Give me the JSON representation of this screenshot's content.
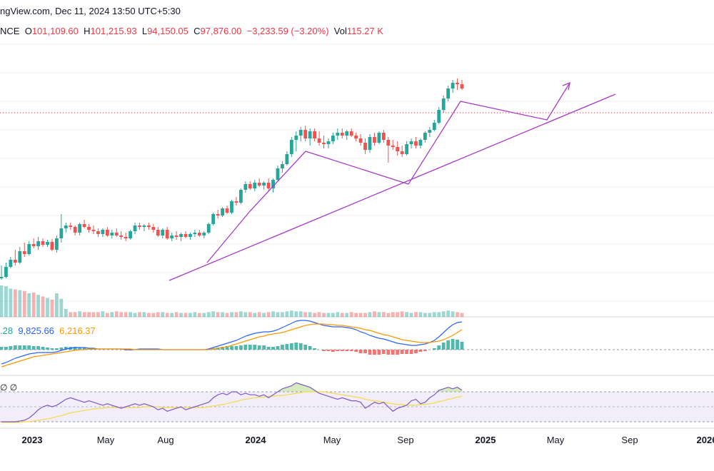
{
  "header": {
    "credit": "ngView.com, Dec 11, 2024 13:50 UTC+5:30",
    "symbol_fragment": "NCE",
    "open_label": "O",
    "open": "101,109.60",
    "high_label": "H",
    "high": "101,215.93",
    "low_label": "L",
    "low": "94,150.05",
    "close_label": "C",
    "close": "97,876.00",
    "change": "−3,233.59 (−3.20%)",
    "vol_label": "Vol",
    "vol": "115.27 K"
  },
  "macd_values": {
    "v1": ".28",
    "v2": "9,825.66",
    "v3": "6,216.37"
  },
  "rsi_symbols": "∅ ∅",
  "colors": {
    "up": "#26a69a",
    "down": "#ef5350",
    "macd": "#2962ff",
    "signal": "#ff9800",
    "rsi": "#7e57c2",
    "rsi_ma": "#f5d94a",
    "drawing": "#a73bc7",
    "price_line": "#f23645"
  },
  "chart_data": {
    "type": "candlestick",
    "time_axis_labels": [
      "2023",
      "May",
      "Aug",
      "2024",
      "May",
      "Sep",
      "2025",
      "May",
      "Sep",
      "2026"
    ],
    "time_axis_bold": [
      "2023",
      "2024",
      "2025",
      "2026"
    ],
    "candles": [
      {
        "o": 40,
        "h": 58,
        "l": 38,
        "c": 42
      },
      {
        "o": 42,
        "h": 62,
        "l": 40,
        "c": 56
      },
      {
        "o": 56,
        "h": 70,
        "l": 54,
        "c": 66
      },
      {
        "o": 66,
        "h": 80,
        "l": 58,
        "c": 62
      },
      {
        "o": 62,
        "h": 84,
        "l": 60,
        "c": 78
      },
      {
        "o": 78,
        "h": 90,
        "l": 70,
        "c": 74
      },
      {
        "o": 74,
        "h": 92,
        "l": 72,
        "c": 88
      },
      {
        "o": 88,
        "h": 96,
        "l": 82,
        "c": 85
      },
      {
        "o": 85,
        "h": 98,
        "l": 80,
        "c": 92
      },
      {
        "o": 92,
        "h": 96,
        "l": 84,
        "c": 87
      },
      {
        "o": 87,
        "h": 94,
        "l": 84,
        "c": 91
      },
      {
        "o": 91,
        "h": 95,
        "l": 78,
        "c": 80
      },
      {
        "o": 80,
        "h": 100,
        "l": 76,
        "c": 96
      },
      {
        "o": 96,
        "h": 130,
        "l": 90,
        "c": 110
      },
      {
        "o": 110,
        "h": 118,
        "l": 104,
        "c": 114
      },
      {
        "o": 114,
        "h": 118,
        "l": 108,
        "c": 112
      },
      {
        "o": 112,
        "h": 114,
        "l": 100,
        "c": 104
      },
      {
        "o": 104,
        "h": 118,
        "l": 100,
        "c": 116
      },
      {
        "o": 116,
        "h": 122,
        "l": 110,
        "c": 112
      },
      {
        "o": 112,
        "h": 116,
        "l": 104,
        "c": 108
      },
      {
        "o": 108,
        "h": 114,
        "l": 102,
        "c": 106
      },
      {
        "o": 106,
        "h": 110,
        "l": 98,
        "c": 102
      },
      {
        "o": 102,
        "h": 110,
        "l": 98,
        "c": 108
      },
      {
        "o": 108,
        "h": 112,
        "l": 98,
        "c": 100
      },
      {
        "o": 100,
        "h": 108,
        "l": 96,
        "c": 104
      },
      {
        "o": 104,
        "h": 110,
        "l": 98,
        "c": 100
      },
      {
        "o": 100,
        "h": 106,
        "l": 94,
        "c": 98
      },
      {
        "o": 98,
        "h": 104,
        "l": 92,
        "c": 96
      },
      {
        "o": 96,
        "h": 108,
        "l": 94,
        "c": 106
      },
      {
        "o": 106,
        "h": 118,
        "l": 102,
        "c": 114
      },
      {
        "o": 114,
        "h": 118,
        "l": 108,
        "c": 112
      },
      {
        "o": 112,
        "h": 116,
        "l": 106,
        "c": 114
      },
      {
        "o": 114,
        "h": 118,
        "l": 108,
        "c": 112
      },
      {
        "o": 112,
        "h": 116,
        "l": 104,
        "c": 108
      },
      {
        "o": 108,
        "h": 112,
        "l": 98,
        "c": 100
      },
      {
        "o": 100,
        "h": 110,
        "l": 96,
        "c": 108
      },
      {
        "o": 108,
        "h": 112,
        "l": 94,
        "c": 96
      },
      {
        "o": 96,
        "h": 104,
        "l": 92,
        "c": 100
      },
      {
        "o": 100,
        "h": 106,
        "l": 94,
        "c": 98
      },
      {
        "o": 98,
        "h": 104,
        "l": 92,
        "c": 102
      },
      {
        "o": 102,
        "h": 106,
        "l": 96,
        "c": 98
      },
      {
        "o": 98,
        "h": 104,
        "l": 94,
        "c": 102
      },
      {
        "o": 102,
        "h": 108,
        "l": 98,
        "c": 104
      },
      {
        "o": 104,
        "h": 108,
        "l": 98,
        "c": 100
      },
      {
        "o": 100,
        "h": 106,
        "l": 96,
        "c": 104
      },
      {
        "o": 104,
        "h": 118,
        "l": 102,
        "c": 116
      },
      {
        "o": 116,
        "h": 132,
        "l": 114,
        "c": 130
      },
      {
        "o": 130,
        "h": 136,
        "l": 124,
        "c": 128
      },
      {
        "o": 128,
        "h": 140,
        "l": 126,
        "c": 138
      },
      {
        "o": 138,
        "h": 142,
        "l": 130,
        "c": 132
      },
      {
        "o": 132,
        "h": 150,
        "l": 130,
        "c": 148
      },
      {
        "o": 148,
        "h": 154,
        "l": 142,
        "c": 146
      },
      {
        "o": 146,
        "h": 166,
        "l": 144,
        "c": 164
      },
      {
        "o": 164,
        "h": 176,
        "l": 160,
        "c": 172
      },
      {
        "o": 172,
        "h": 176,
        "l": 164,
        "c": 166
      },
      {
        "o": 166,
        "h": 178,
        "l": 162,
        "c": 174
      },
      {
        "o": 174,
        "h": 180,
        "l": 168,
        "c": 170
      },
      {
        "o": 170,
        "h": 176,
        "l": 164,
        "c": 174
      },
      {
        "o": 174,
        "h": 180,
        "l": 162,
        "c": 166
      },
      {
        "o": 166,
        "h": 180,
        "l": 160,
        "c": 178
      },
      {
        "o": 178,
        "h": 198,
        "l": 176,
        "c": 194
      },
      {
        "o": 194,
        "h": 204,
        "l": 188,
        "c": 200
      },
      {
        "o": 200,
        "h": 218,
        "l": 198,
        "c": 214
      },
      {
        "o": 214,
        "h": 238,
        "l": 210,
        "c": 234
      },
      {
        "o": 234,
        "h": 246,
        "l": 218,
        "c": 240
      },
      {
        "o": 240,
        "h": 252,
        "l": 232,
        "c": 248
      },
      {
        "o": 248,
        "h": 254,
        "l": 232,
        "c": 236
      },
      {
        "o": 236,
        "h": 250,
        "l": 226,
        "c": 246
      },
      {
        "o": 246,
        "h": 250,
        "l": 232,
        "c": 236
      },
      {
        "o": 236,
        "h": 246,
        "l": 226,
        "c": 230
      },
      {
        "o": 230,
        "h": 240,
        "l": 222,
        "c": 228
      },
      {
        "o": 228,
        "h": 236,
        "l": 222,
        "c": 232
      },
      {
        "o": 232,
        "h": 244,
        "l": 228,
        "c": 240
      },
      {
        "o": 240,
        "h": 250,
        "l": 234,
        "c": 244
      },
      {
        "o": 244,
        "h": 250,
        "l": 236,
        "c": 240
      },
      {
        "o": 240,
        "h": 248,
        "l": 234,
        "c": 246
      },
      {
        "o": 246,
        "h": 250,
        "l": 238,
        "c": 240
      },
      {
        "o": 240,
        "h": 244,
        "l": 232,
        "c": 236
      },
      {
        "o": 236,
        "h": 242,
        "l": 226,
        "c": 230
      },
      {
        "o": 230,
        "h": 236,
        "l": 214,
        "c": 220
      },
      {
        "o": 220,
        "h": 242,
        "l": 216,
        "c": 238
      },
      {
        "o": 238,
        "h": 244,
        "l": 226,
        "c": 230
      },
      {
        "o": 230,
        "h": 246,
        "l": 228,
        "c": 244
      },
      {
        "o": 244,
        "h": 248,
        "l": 230,
        "c": 234
      },
      {
        "o": 234,
        "h": 238,
        "l": 202,
        "c": 226
      },
      {
        "o": 226,
        "h": 234,
        "l": 220,
        "c": 224
      },
      {
        "o": 224,
        "h": 232,
        "l": 212,
        "c": 218
      },
      {
        "o": 218,
        "h": 226,
        "l": 210,
        "c": 214
      },
      {
        "o": 214,
        "h": 232,
        "l": 212,
        "c": 228
      },
      {
        "o": 228,
        "h": 236,
        "l": 222,
        "c": 232
      },
      {
        "o": 232,
        "h": 238,
        "l": 222,
        "c": 226
      },
      {
        "o": 226,
        "h": 236,
        "l": 222,
        "c": 234
      },
      {
        "o": 234,
        "h": 246,
        "l": 230,
        "c": 244
      },
      {
        "o": 244,
        "h": 252,
        "l": 238,
        "c": 248
      },
      {
        "o": 248,
        "h": 262,
        "l": 246,
        "c": 258
      },
      {
        "o": 258,
        "h": 280,
        "l": 256,
        "c": 276
      },
      {
        "o": 276,
        "h": 296,
        "l": 272,
        "c": 292
      },
      {
        "o": 292,
        "h": 310,
        "l": 288,
        "c": 306
      },
      {
        "o": 306,
        "h": 318,
        "l": 300,
        "c": 314
      },
      {
        "o": 314,
        "h": 320,
        "l": 304,
        "c": 312
      },
      {
        "o": 312,
        "h": 318,
        "l": 304,
        "c": 306
      }
    ],
    "volume": [
      80,
      78,
      72,
      70,
      68,
      66,
      60,
      62,
      56,
      52,
      48,
      44,
      60,
      46,
      20,
      12,
      12,
      14,
      12,
      12,
      12,
      12,
      14,
      10,
      12,
      14,
      12,
      12,
      12,
      10,
      12,
      12,
      10,
      10,
      12,
      12,
      10,
      10,
      12,
      10,
      10,
      10,
      12,
      10,
      10,
      12,
      14,
      12,
      12,
      10,
      12,
      12,
      14,
      12,
      12,
      10,
      12,
      10,
      12,
      14,
      12,
      12,
      14,
      16,
      14,
      14,
      12,
      12,
      10,
      12,
      10,
      10,
      10,
      12,
      10,
      10,
      12,
      10,
      10,
      10,
      12,
      14,
      12,
      12,
      10,
      12,
      12,
      14,
      12,
      10,
      12,
      12,
      10,
      10,
      12,
      12,
      14,
      16,
      14,
      12,
      10
    ],
    "macd_line": [
      -20,
      -18,
      -15,
      -12,
      -10,
      -8,
      -6,
      -5,
      -4,
      -4,
      -4,
      -4,
      -3,
      -1,
      1,
      2,
      3,
      3,
      3,
      2,
      2,
      1,
      1,
      1,
      1,
      1,
      1,
      0,
      0,
      0,
      1,
      1,
      1,
      1,
      1,
      0,
      0,
      0,
      0,
      0,
      0,
      0,
      0,
      0,
      0,
      1,
      3,
      5,
      7,
      9,
      11,
      13,
      16,
      19,
      21,
      23,
      24,
      25,
      25,
      26,
      28,
      31,
      34,
      37,
      40,
      41,
      41,
      40,
      38,
      36,
      34,
      33,
      32,
      32,
      32,
      31,
      30,
      28,
      25,
      23,
      20,
      18,
      16,
      15,
      13,
      11,
      9,
      8,
      7,
      6,
      6,
      7,
      8,
      10,
      13,
      18,
      24,
      30,
      35,
      38,
      39
    ],
    "signal_line": [
      -24,
      -22,
      -20,
      -18,
      -16,
      -14,
      -12,
      -10,
      -9,
      -8,
      -7,
      -6,
      -5,
      -4,
      -3,
      -2,
      -1,
      0,
      0,
      1,
      1,
      1,
      1,
      1,
      1,
      1,
      1,
      1,
      1,
      0,
      0,
      0,
      0,
      0,
      0,
      0,
      0,
      0,
      0,
      0,
      0,
      0,
      0,
      0,
      0,
      0,
      1,
      2,
      3,
      4,
      6,
      8,
      10,
      12,
      14,
      16,
      18,
      19,
      21,
      22,
      23,
      24,
      26,
      28,
      30,
      32,
      34,
      35,
      36,
      36,
      36,
      35,
      35,
      34,
      34,
      33,
      32,
      31,
      30,
      28,
      27,
      25,
      23,
      21,
      20,
      18,
      16,
      14,
      13,
      12,
      11,
      10,
      10,
      10,
      11,
      12,
      14,
      17,
      20,
      24,
      28
    ],
    "rsi": [
      30,
      30,
      30,
      30,
      31,
      32,
      35,
      40,
      46,
      50,
      52,
      50,
      52,
      56,
      60,
      62,
      60,
      58,
      56,
      58,
      56,
      54,
      52,
      54,
      52,
      50,
      48,
      50,
      52,
      54,
      52,
      54,
      52,
      50,
      46,
      48,
      44,
      46,
      48,
      50,
      46,
      48,
      50,
      52,
      54,
      56,
      62,
      66,
      68,
      66,
      70,
      70,
      66,
      68,
      66,
      66,
      64,
      66,
      62,
      66,
      70,
      74,
      76,
      78,
      82,
      80,
      78,
      76,
      72,
      68,
      66,
      64,
      62,
      60,
      62,
      60,
      58,
      58,
      56,
      48,
      52,
      56,
      54,
      56,
      50,
      44,
      48,
      50,
      52,
      58,
      60,
      54,
      56,
      62,
      66,
      72,
      74,
      76,
      74,
      76,
      72
    ],
    "rsi_ma": [
      29,
      29,
      29,
      29,
      29,
      30,
      30,
      31,
      32,
      33,
      34,
      35,
      37,
      38,
      40,
      42,
      43,
      44,
      45,
      46,
      47,
      48,
      48,
      49,
      49,
      49,
      49,
      49,
      49,
      49,
      49,
      50,
      50,
      50,
      50,
      49,
      49,
      49,
      49,
      49,
      49,
      49,
      49,
      49,
      49,
      50,
      51,
      52,
      53,
      54,
      56,
      57,
      59,
      60,
      61,
      62,
      63,
      63,
      64,
      64,
      65,
      65,
      66,
      67,
      68,
      69,
      70,
      70,
      70,
      70,
      70,
      69,
      68,
      67,
      66,
      65,
      64,
      63,
      62,
      60,
      59,
      58,
      57,
      56,
      55,
      54,
      53,
      53,
      52,
      52,
      52,
      53,
      53,
      54,
      55,
      57,
      58,
      60,
      61,
      63,
      64
    ]
  }
}
